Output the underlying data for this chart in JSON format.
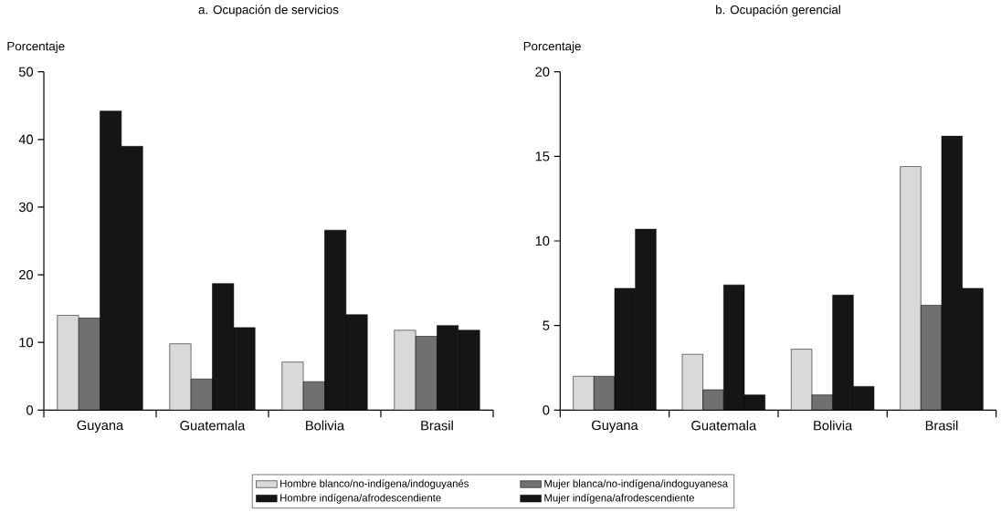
{
  "chart_data": [
    {
      "type": "bar",
      "title": "a. Ocupación de servicios",
      "ylabel": "Porcentaje",
      "categories": [
        "Guyana",
        "Guatemala",
        "Bolivia",
        "Brasil"
      ],
      "ylim": [
        0,
        50
      ],
      "yticks": [
        0,
        10,
        20,
        30,
        40,
        50
      ],
      "grid": false,
      "legend": "bottom",
      "series": [
        {
          "name": "Hombre blanco/no-indígena/indoguyanés",
          "color": "#d9d9d9",
          "values": [
            14,
            9.8,
            7.1,
            11.8
          ]
        },
        {
          "name": "Mujer blanca/no-indígena/indoguyanesa",
          "color": "#707070",
          "values": [
            13.6,
            4.6,
            4.2,
            10.9
          ]
        },
        {
          "name": "Hombre indígena/afrodescendiente",
          "color": "#151515",
          "values": [
            44.2,
            18.7,
            26.6,
            12.5
          ]
        },
        {
          "name": "Mujer indígena/afrodescendiente",
          "color": "#151515",
          "values": [
            39,
            12.2,
            14.1,
            11.8
          ]
        }
      ]
    },
    {
      "type": "bar",
      "title": "b. Ocupación gerencial",
      "ylabel": "Porcentaje",
      "categories": [
        "Guyana",
        "Guatemala",
        "Bolivia",
        "Brasil"
      ],
      "ylim": [
        0,
        20
      ],
      "yticks": [
        0,
        5,
        10,
        15,
        20
      ],
      "grid": false,
      "series": [
        {
          "color": "#d9d9d9",
          "values": [
            2,
            3.3,
            3.6,
            14.4
          ]
        },
        {
          "color": "#707070",
          "values": [
            2,
            1.2,
            0.9,
            6.2
          ]
        },
        {
          "color": "#151515",
          "values": [
            7.2,
            7.4,
            6.8,
            16.2
          ]
        },
        {
          "color": "#151515",
          "values": [
            10.7,
            0.9,
            1.4,
            7.2
          ]
        }
      ]
    }
  ]
}
